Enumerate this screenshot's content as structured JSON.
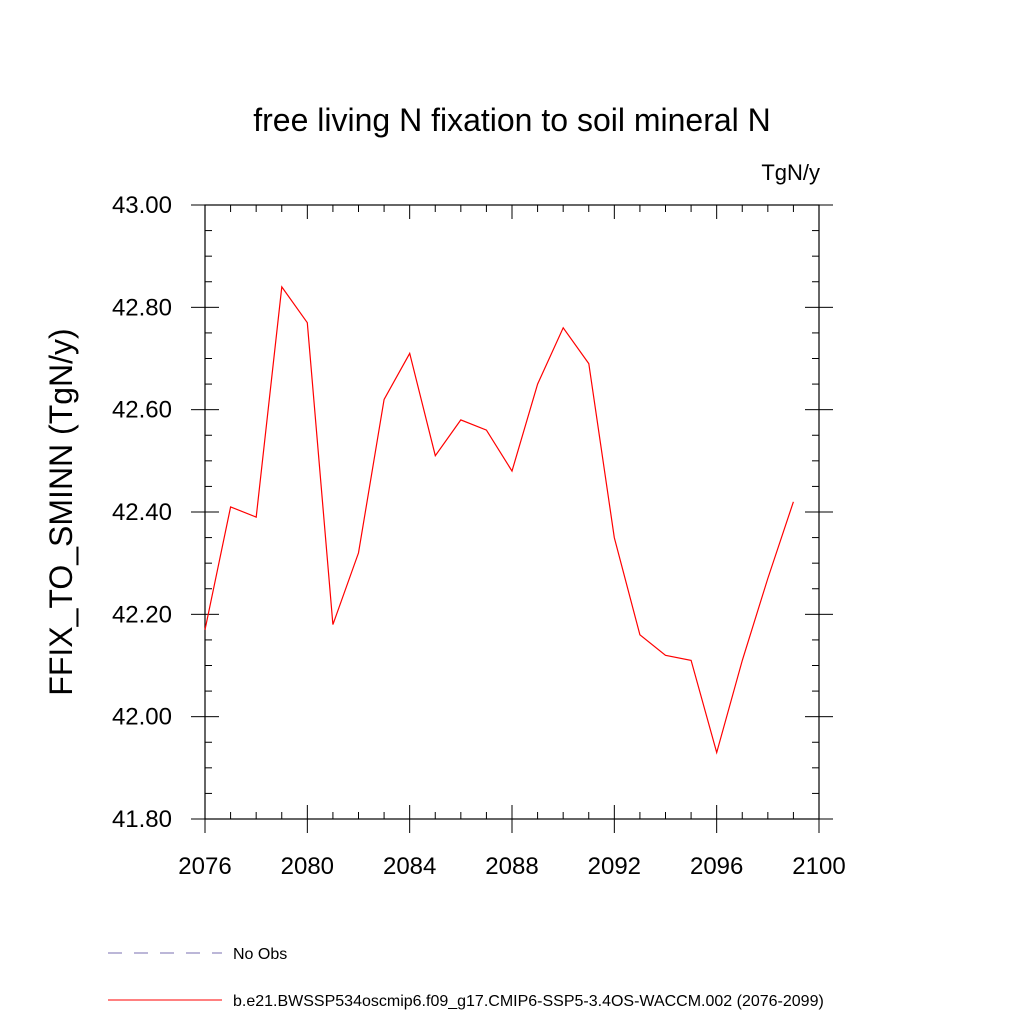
{
  "chart_data": {
    "type": "line",
    "title": "free living N fixation to soil mineral N",
    "units_label": "TgN/y",
    "ylabel": "FFIX_TO_SMINN  (TgN/y)",
    "xlabel": "",
    "xlim": [
      2076,
      2100
    ],
    "ylim": [
      41.8,
      43.0
    ],
    "x_ticks": [
      2076,
      2080,
      2084,
      2088,
      2092,
      2096,
      2100
    ],
    "y_ticks": [
      "41.80",
      "42.00",
      "42.20",
      "42.40",
      "42.60",
      "42.80",
      "43.00"
    ],
    "grid": false,
    "legend_placement": "bottom-left",
    "series": [
      {
        "name": "b.e21.BWSSP534oscmip6.f09_g17.CMIP6-SSP5-3.4OS-WACCM.002 (2076-2099)",
        "color": "#ff0000",
        "style": "solid",
        "x": [
          2076,
          2077,
          2078,
          2079,
          2080,
          2081,
          2082,
          2083,
          2084,
          2085,
          2086,
          2087,
          2088,
          2089,
          2090,
          2091,
          2092,
          2093,
          2094,
          2095,
          2096,
          2097,
          2098,
          2099
        ],
        "values": [
          42.17,
          42.41,
          42.39,
          42.84,
          42.77,
          42.18,
          42.32,
          42.62,
          42.71,
          42.51,
          42.58,
          42.56,
          42.48,
          42.65,
          42.76,
          42.69,
          42.35,
          42.16,
          42.12,
          42.11,
          41.93,
          42.11,
          42.27,
          42.42
        ]
      }
    ],
    "legend": [
      {
        "label": "No Obs",
        "color": "#7a6fb0",
        "style": "dashed"
      },
      {
        "label": "b.e21.BWSSP534oscmip6.f09_g17.CMIP6-SSP5-3.4OS-WACCM.002 (2076-2099)",
        "color": "#ff0000",
        "style": "solid"
      }
    ]
  }
}
